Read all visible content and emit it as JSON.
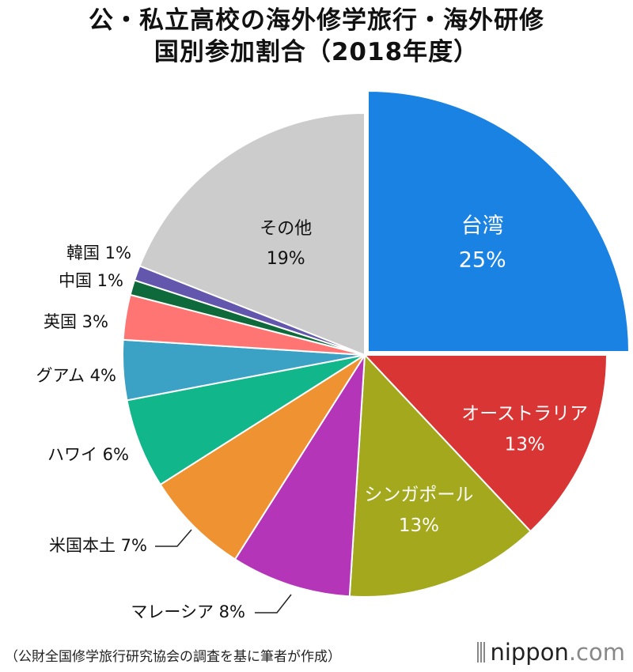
{
  "title_line1": "公・私立高校の海外修学旅行・海外研修",
  "title_line2": "国別参加割合（2018年度）",
  "source": "（公財全国修学旅行研究協会の調査を基に筆者が作成）",
  "logo": {
    "main": "nippon",
    "suffix": ".com"
  },
  "chart_data": {
    "type": "pie",
    "title": "公・私立高校の海外修学旅行・海外研修 国別参加割合（2018年度）",
    "start": "12 o'clock, clockwise; first slice pulled out",
    "slices": [
      {
        "label": "台湾",
        "value": 25,
        "display": "25%",
        "color": "#1a82e2"
      },
      {
        "label": "オーストラリア",
        "value": 13,
        "display": "13%",
        "color": "#d93535"
      },
      {
        "label": "シンガポール",
        "value": 13,
        "display": "13%",
        "color": "#a3a81c"
      },
      {
        "label": "マレーシア",
        "value": 8,
        "display": "8%",
        "color": "#b435b8"
      },
      {
        "label": "米国本土",
        "value": 7,
        "display": "7%",
        "color": "#ef9231"
      },
      {
        "label": "ハワイ",
        "value": 6,
        "display": "6%",
        "color": "#11b68a"
      },
      {
        "label": "グアム",
        "value": 4,
        "display": "4%",
        "color": "#3ba1c5"
      },
      {
        "label": "英国",
        "value": 3,
        "display": "3%",
        "color": "#ff7574"
      },
      {
        "label": "中国",
        "value": 1,
        "display": "1%",
        "color": "#0e6a3a"
      },
      {
        "label": "韓国",
        "value": 1,
        "display": "1%",
        "color": "#6357ad"
      },
      {
        "label": "その他",
        "value": 19,
        "display": "19%",
        "color": "#cccccc"
      }
    ]
  }
}
